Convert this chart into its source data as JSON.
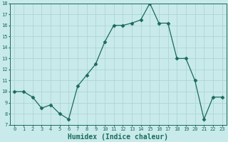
{
  "x": [
    0,
    1,
    2,
    3,
    4,
    5,
    6,
    7,
    8,
    9,
    10,
    11,
    12,
    13,
    14,
    15,
    16,
    17,
    18,
    19,
    20,
    21,
    22,
    23
  ],
  "y": [
    10,
    10,
    9.5,
    8.5,
    8.8,
    8.0,
    7.5,
    10.5,
    11.5,
    12.5,
    14.5,
    16.0,
    16.0,
    16.2,
    16.5,
    18.0,
    16.2,
    16.2,
    13.0,
    13.0,
    11.0,
    7.5,
    9.5,
    9.5
  ],
  "xlabel": "Humidex (Indice chaleur)",
  "ylim": [
    7,
    18
  ],
  "xlim": [
    -0.5,
    23.5
  ],
  "yticks": [
    7,
    8,
    9,
    10,
    11,
    12,
    13,
    14,
    15,
    16,
    17,
    18
  ],
  "xticks": [
    0,
    1,
    2,
    3,
    4,
    5,
    6,
    7,
    8,
    9,
    10,
    11,
    12,
    13,
    14,
    15,
    16,
    17,
    18,
    19,
    20,
    21,
    22,
    23
  ],
  "line_color": "#1a6b5a",
  "marker": "D",
  "markersize": 2.5,
  "linewidth": 0.9,
  "bg_color": "#c8eaea",
  "grid_color": "#b0d4d4",
  "tick_label_color": "#1a6b5a",
  "xlabel_color": "#1a6b5a",
  "xlabel_fontsize": 7,
  "tick_fontsize": 5.0
}
